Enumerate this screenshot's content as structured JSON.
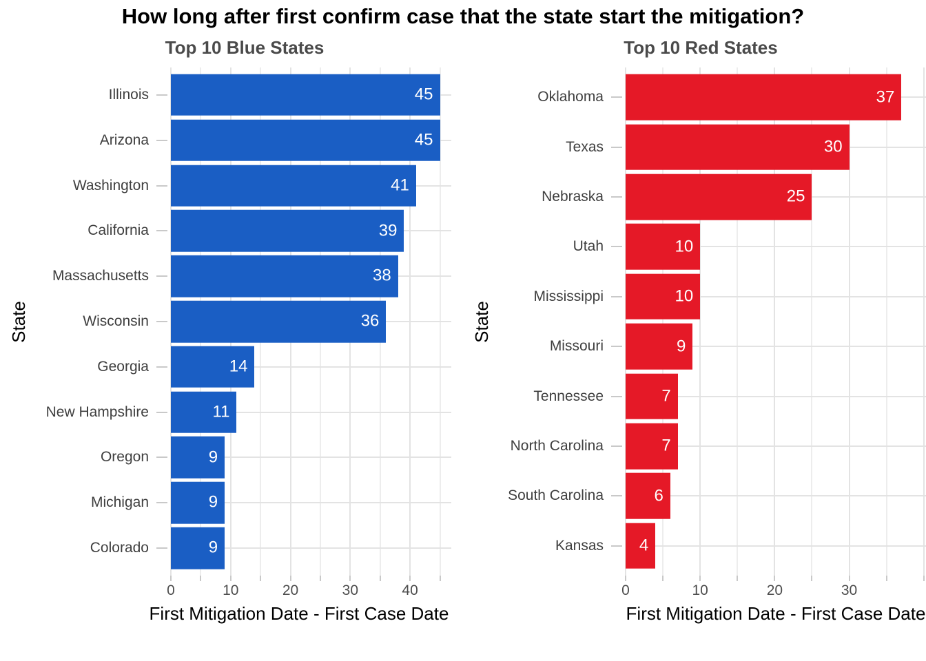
{
  "title": "How long after first confirm case that the state start the mitigation?",
  "theme": {
    "background": "#ffffff",
    "panel_background": "#ffffff",
    "grid_major_color": "#e3e3e3",
    "grid_minor_color": "#ededed",
    "tick_color": "#c9c9c9",
    "title_color": "#000000",
    "subtitle_color": "#4a4a4a",
    "category_label_color": "#3f3f3f",
    "axis_tick_label_color": "#4d4d4d",
    "bar_value_label_color": "#ffffff"
  },
  "chart_data": [
    {
      "type": "bar",
      "orientation": "horizontal",
      "title": "Top 10 Blue States",
      "xlabel": "First Mitigation Date - First Case Date",
      "ylabel": "State",
      "bar_color": "#1a5ec4",
      "categories": [
        "Illinois",
        "Arizona",
        "Washington",
        "California",
        "Massachusetts",
        "Wisconsin",
        "Georgia",
        "New Hampshire",
        "Oregon",
        "Michigan",
        "Colorado"
      ],
      "values": [
        45,
        45,
        41,
        39,
        38,
        36,
        14,
        11,
        9,
        9,
        9
      ],
      "xlim": [
        0,
        46.9
      ],
      "xticks": [
        0,
        10,
        20,
        30,
        40
      ],
      "minor_tick_step": 5,
      "grid": true,
      "legend": "none",
      "value_labels_shown": true
    },
    {
      "type": "bar",
      "orientation": "horizontal",
      "title": "Top 10 Red States",
      "xlabel": "First Mitigation Date - First Case Date",
      "ylabel": "State",
      "bar_color": "#e51927",
      "categories": [
        "Oklahoma",
        "Texas",
        "Nebraska",
        "Utah",
        "Mississippi",
        "Missouri",
        "Tennessee",
        "North Carolina",
        "South Carolina",
        "Kansas"
      ],
      "values": [
        37,
        30,
        25,
        10,
        10,
        9,
        7,
        7,
        6,
        4
      ],
      "xlim": [
        0,
        40.3
      ],
      "xticks": [
        0,
        10,
        20,
        30
      ],
      "minor_tick_step": 5,
      "grid": true,
      "legend": "none",
      "value_labels_shown": true
    }
  ]
}
